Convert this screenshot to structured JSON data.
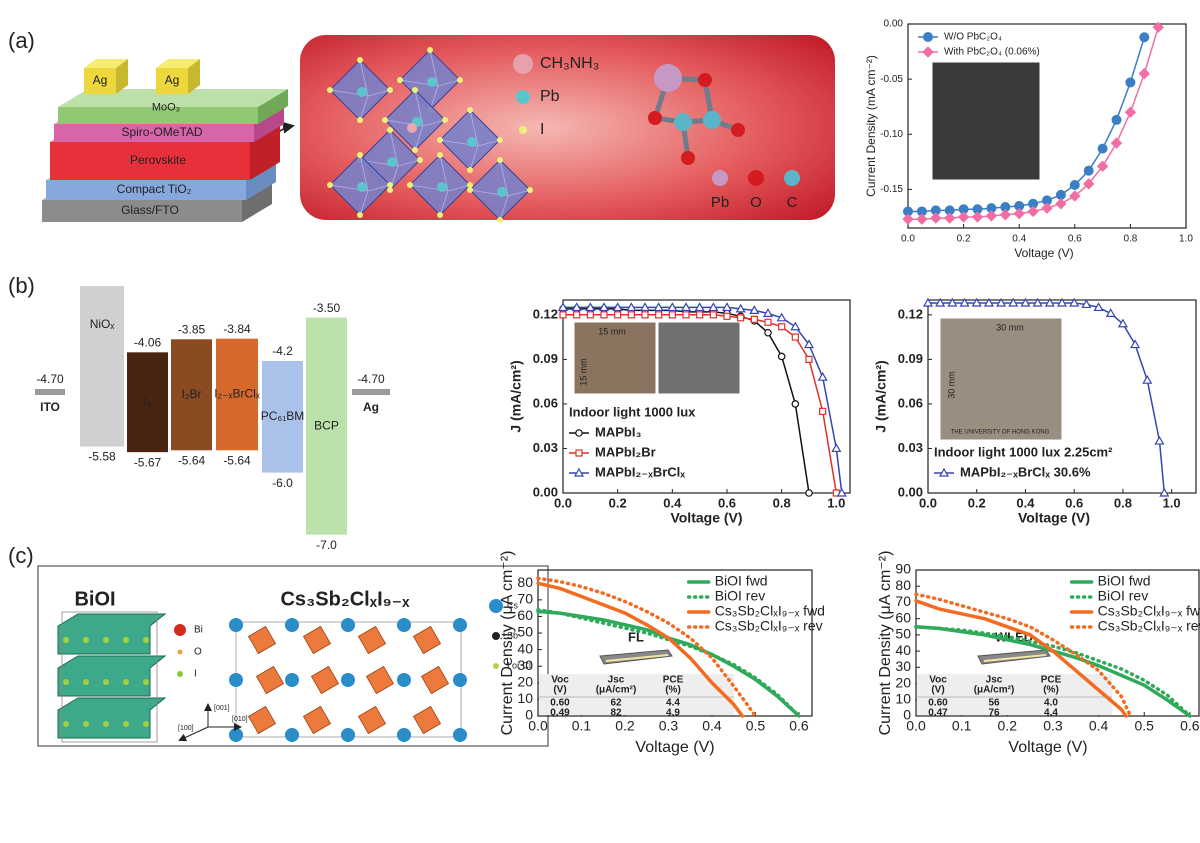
{
  "panel_labels": [
    "(a)",
    "(b)",
    "(c)"
  ],
  "device_stack": {
    "layers": [
      "Glass/FTO",
      "Compact TiO₂",
      "Perovskite",
      "Spiro-OMeTAD",
      "MoO₃"
    ],
    "electrodes": [
      "Ag",
      "Ag"
    ]
  },
  "crystal": {
    "legend": [
      "CH₃NH₃",
      "Pb",
      "I"
    ],
    "molecule_legend": [
      "Pb",
      "O",
      "C"
    ]
  },
  "energy_diagram": {
    "levels": [
      {
        "name": "ITO",
        "level": "-4.70"
      },
      {
        "name": "NiOₓ",
        "bottom": "-5.58"
      },
      {
        "name": "I₃",
        "top": "-4.06",
        "bottom": "-5.67"
      },
      {
        "name": "I₂Br",
        "top": "-3.85",
        "bottom": "-5.64"
      },
      {
        "name": "I₂₋ₓBrClₓ",
        "top": "-3.84",
        "bottom": "-5.64"
      },
      {
        "name": "PC₆₁BM",
        "top": "-4.2",
        "bottom": "-6.0"
      },
      {
        "name": "BCP",
        "top": "-3.50",
        "bottom": "-7.0"
      },
      {
        "name": "Ag",
        "level": "-4.70"
      }
    ]
  },
  "structures": {
    "left_title": "BiOI",
    "left_legend": [
      "Bi",
      "O",
      "I"
    ],
    "right_title": "Cs₃Sb₂ClₓI₉₋ₓ",
    "right_legend": [
      "Cs",
      "Sb",
      "I or Cl"
    ],
    "axes": [
      "[001]",
      "[010]",
      "[100]"
    ]
  },
  "chart_data": [
    {
      "type": "line",
      "x_label": "Voltage (V)",
      "y_label": "Current Density (mA cm⁻²)",
      "xlim": [
        0,
        1
      ],
      "ylim": [
        -0.185,
        0
      ],
      "xticks": [
        {
          "value": 0,
          "label": "0.0"
        },
        0.2,
        0.4,
        0.6,
        0.8,
        {
          "value": 1,
          "label": "1.0"
        }
      ],
      "yticks": [
        {
          "value": 0,
          "label": "0.00"
        },
        -0.05,
        {
          "value": -0.1,
          "label": "-0.10"
        },
        -0.15
      ],
      "legend": "upper left",
      "series": [
        {
          "name": "W/O PbC₂O₄",
          "color": "#3b7ec4",
          "marker": "circle",
          "x": [
            0,
            0.05,
            0.1,
            0.15,
            0.2,
            0.25,
            0.3,
            0.35,
            0.4,
            0.45,
            0.5,
            0.55,
            0.6,
            0.65,
            0.7,
            0.75,
            0.8,
            0.85
          ],
          "values": [
            -0.17,
            -0.17,
            -0.169,
            -0.169,
            -0.168,
            -0.168,
            -0.167,
            -0.166,
            -0.165,
            -0.163,
            -0.16,
            -0.155,
            -0.146,
            -0.133,
            -0.113,
            -0.087,
            -0.053,
            -0.012
          ]
        },
        {
          "name": "With PbC₂O₄ (0.06%)",
          "color": "#f06ea5",
          "marker": "diamond",
          "x": [
            0,
            0.05,
            0.1,
            0.15,
            0.2,
            0.25,
            0.3,
            0.35,
            0.4,
            0.45,
            0.5,
            0.55,
            0.6,
            0.65,
            0.7,
            0.75,
            0.8,
            0.85,
            0.9
          ],
          "values": [
            -0.177,
            -0.177,
            -0.176,
            -0.176,
            -0.175,
            -0.175,
            -0.174,
            -0.173,
            -0.172,
            -0.17,
            -0.167,
            -0.163,
            -0.156,
            -0.145,
            -0.129,
            -0.108,
            -0.08,
            -0.045,
            -0.003
          ]
        }
      ]
    },
    {
      "type": "line",
      "x_label": "Voltage (V)",
      "y_label": "J (mA/cm²)",
      "xlim": [
        0,
        1.05
      ],
      "ylim": [
        0,
        0.13
      ],
      "xticks": [
        {
          "value": 0,
          "label": "0.0"
        },
        0.2,
        0.4,
        0.6,
        0.8,
        {
          "value": 1,
          "label": "1.0"
        }
      ],
      "yticks": [
        {
          "value": 0,
          "label": "0.00"
        },
        0.03,
        0.06,
        0.09,
        0.12
      ],
      "legend": "lower left",
      "annotation": "Indoor light 1000 lux",
      "inset_labels": [
        "15 mm",
        "15 mm"
      ],
      "series": [
        {
          "name": "MAPbI₃",
          "color": "#111111",
          "marker": "open-circle",
          "x": [
            0,
            0.05,
            0.1,
            0.15,
            0.2,
            0.25,
            0.3,
            0.35,
            0.4,
            0.45,
            0.5,
            0.55,
            0.6,
            0.65,
            0.7,
            0.75,
            0.8,
            0.85,
            0.9
          ],
          "values": [
            0.124,
            0.124,
            0.124,
            0.124,
            0.124,
            0.123,
            0.123,
            0.123,
            0.123,
            0.122,
            0.122,
            0.122,
            0.121,
            0.119,
            0.116,
            0.108,
            0.092,
            0.06,
            0
          ]
        },
        {
          "name": "MAPbI₂Br",
          "color": "#e0302a",
          "marker": "open-square",
          "x": [
            0,
            0.05,
            0.1,
            0.15,
            0.2,
            0.25,
            0.3,
            0.35,
            0.4,
            0.45,
            0.5,
            0.55,
            0.6,
            0.65,
            0.7,
            0.75,
            0.8,
            0.85,
            0.9,
            0.95,
            1
          ],
          "values": [
            0.12,
            0.12,
            0.12,
            0.12,
            0.12,
            0.12,
            0.12,
            0.12,
            0.12,
            0.12,
            0.12,
            0.12,
            0.119,
            0.118,
            0.117,
            0.115,
            0.112,
            0.105,
            0.09,
            0.055,
            0
          ]
        },
        {
          "name": "MAPbI₂₋ₓBrClₓ",
          "color": "#3545b5",
          "marker": "open-triangle",
          "x": [
            0,
            0.05,
            0.1,
            0.15,
            0.2,
            0.25,
            0.3,
            0.35,
            0.4,
            0.45,
            0.5,
            0.55,
            0.6,
            0.65,
            0.7,
            0.75,
            0.8,
            0.85,
            0.9,
            0.95,
            1,
            1.02
          ],
          "values": [
            0.125,
            0.125,
            0.125,
            0.125,
            0.125,
            0.125,
            0.125,
            0.125,
            0.125,
            0.125,
            0.125,
            0.125,
            0.125,
            0.124,
            0.123,
            0.121,
            0.118,
            0.112,
            0.1,
            0.078,
            0.03,
            0
          ]
        }
      ]
    },
    {
      "type": "line",
      "x_label": "Voltage (V)",
      "y_label": "J (mA/cm²)",
      "xlim": [
        0,
        1.1
      ],
      "ylim": [
        0,
        0.13
      ],
      "xticks": [
        {
          "value": 0,
          "label": "0.0"
        },
        0.2,
        0.4,
        0.6,
        0.8,
        {
          "value": 1,
          "label": "1.0"
        }
      ],
      "yticks": [
        {
          "value": 0,
          "label": "0.00"
        },
        0.03,
        0.06,
        0.09,
        0.12
      ],
      "legend": "lower left",
      "annotation": "Indoor light 1000 lux 2.25cm²",
      "inset_labels": [
        "30 mm",
        "30 mm",
        "THE UNIVERSITY OF HONG KONG"
      ],
      "series": [
        {
          "name": "MAPbI₂₋ₓBrClₓ 30.6%",
          "color": "#3545b5",
          "marker": "open-triangle",
          "x": [
            0,
            0.05,
            0.1,
            0.15,
            0.2,
            0.25,
            0.3,
            0.35,
            0.4,
            0.45,
            0.5,
            0.55,
            0.6,
            0.65,
            0.7,
            0.75,
            0.8,
            0.85,
            0.9,
            0.95,
            0.97
          ],
          "values": [
            0.128,
            0.128,
            0.128,
            0.128,
            0.128,
            0.128,
            0.128,
            0.128,
            0.128,
            0.128,
            0.128,
            0.128,
            0.128,
            0.127,
            0.125,
            0.121,
            0.114,
            0.1,
            0.076,
            0.035,
            0
          ]
        }
      ]
    },
    {
      "type": "line",
      "x_label": "Voltage (V)",
      "y_label": "Current Density (μA cm⁻²)",
      "xlim": [
        0,
        0.63
      ],
      "ylim": [
        0,
        88
      ],
      "xticks": [
        {
          "value": 0,
          "label": "0.0"
        },
        0.1,
        0.2,
        0.3,
        0.4,
        0.5,
        0.6
      ],
      "yticks": [
        0,
        10,
        20,
        30,
        40,
        50,
        60,
        70,
        80
      ],
      "legend": "upper right",
      "inset": {
        "lamp": "FL",
        "header": [
          [
            "Voc",
            "(V)"
          ],
          [
            "Jsc",
            "(μA/cm²)"
          ],
          [
            "PCE",
            "(%)"
          ]
        ],
        "rows": [
          [
            "0.60",
            "62",
            "4.4"
          ],
          [
            "0.49",
            "82",
            "4.9"
          ]
        ]
      },
      "series": [
        {
          "name": "BiOI fwd",
          "color": "#2eaa5a",
          "dash": "solid",
          "x": [
            0,
            0.05,
            0.1,
            0.15,
            0.2,
            0.25,
            0.3,
            0.35,
            0.4,
            0.45,
            0.5,
            0.55,
            0.6
          ],
          "values": [
            63,
            62,
            60,
            58,
            55,
            52,
            47,
            43,
            37,
            30,
            22,
            12,
            0
          ]
        },
        {
          "name": "BiOI rev",
          "color": "#2eaa5a",
          "dash": "dotted",
          "x": [
            0,
            0.05,
            0.1,
            0.15,
            0.2,
            0.25,
            0.3,
            0.35,
            0.4,
            0.45,
            0.5,
            0.55,
            0.6
          ],
          "values": [
            64,
            62,
            59,
            56,
            53,
            50,
            46,
            42,
            37,
            31,
            23,
            13,
            0
          ]
        },
        {
          "name": "Cs₃Sb₂ClₓI₉₋ₓ fwd",
          "color": "#f26b21",
          "dash": "solid",
          "x": [
            0,
            0.05,
            0.1,
            0.15,
            0.2,
            0.25,
            0.3,
            0.35,
            0.4,
            0.45,
            0.47
          ],
          "values": [
            80,
            77,
            72,
            67,
            62,
            55,
            47,
            35,
            20,
            7,
            0
          ]
        },
        {
          "name": "Cs₃Sb₂ClₓI₉₋ₓ rev",
          "color": "#f26b21",
          "dash": "dotted",
          "x": [
            0,
            0.05,
            0.1,
            0.15,
            0.2,
            0.25,
            0.3,
            0.35,
            0.4,
            0.45,
            0.5
          ],
          "values": [
            83,
            81,
            78,
            74,
            69,
            63,
            56,
            47,
            35,
            18,
            0
          ]
        }
      ]
    },
    {
      "type": "line",
      "x_label": "Voltage (V)",
      "y_label": "Current Density (μA cm⁻²)",
      "xlim": [
        0,
        0.62
      ],
      "ylim": [
        0,
        90
      ],
      "xticks": [
        {
          "value": 0,
          "label": "0.0"
        },
        0.1,
        0.2,
        0.3,
        0.4,
        0.5,
        0.6
      ],
      "yticks": [
        0,
        10,
        20,
        30,
        40,
        50,
        60,
        70,
        80,
        90
      ],
      "legend": "upper right",
      "inset": {
        "lamp": "WLED",
        "header": [
          [
            "Voc",
            "(V)"
          ],
          [
            "Jsc",
            "(μA/cm²)"
          ],
          [
            "PCE",
            "(%)"
          ]
        ],
        "rows": [
          [
            "0.60",
            "56",
            "4.0"
          ],
          [
            "0.47",
            "76",
            "4.4"
          ]
        ]
      },
      "series": [
        {
          "name": "BiOI fwd",
          "color": "#2eaa5a",
          "dash": "solid",
          "x": [
            0,
            0.05,
            0.1,
            0.15,
            0.2,
            0.25,
            0.3,
            0.35,
            0.4,
            0.45,
            0.5,
            0.55,
            0.6
          ],
          "values": [
            55,
            54,
            52,
            50,
            47,
            44,
            40,
            36,
            31,
            25,
            19,
            10,
            0
          ]
        },
        {
          "name": "BiOI rev",
          "color": "#2eaa5a",
          "dash": "dotted",
          "x": [
            0,
            0.05,
            0.1,
            0.15,
            0.2,
            0.25,
            0.3,
            0.35,
            0.4,
            0.45,
            0.5,
            0.55,
            0.6
          ],
          "values": [
            55,
            54,
            53,
            51,
            49,
            46,
            43,
            39,
            34,
            29,
            22,
            13,
            0
          ]
        },
        {
          "name": "Cs₃Sb₂ClₓI₉₋ₓ fwd",
          "color": "#f26b21",
          "dash": "solid",
          "x": [
            0,
            0.05,
            0.1,
            0.15,
            0.2,
            0.25,
            0.3,
            0.35,
            0.4,
            0.45,
            0.46
          ],
          "values": [
            71,
            66,
            63,
            60,
            55,
            50,
            40,
            28,
            16,
            4,
            0
          ]
        },
        {
          "name": "Cs₃Sb₂ClₓI₉₋ₓ rev",
          "color": "#f26b21",
          "dash": "dotted",
          "x": [
            0,
            0.05,
            0.1,
            0.15,
            0.2,
            0.25,
            0.3,
            0.35,
            0.4,
            0.45,
            0.47
          ],
          "values": [
            75,
            72,
            68,
            64,
            60,
            55,
            47,
            38,
            28,
            12,
            0
          ]
        }
      ]
    }
  ]
}
